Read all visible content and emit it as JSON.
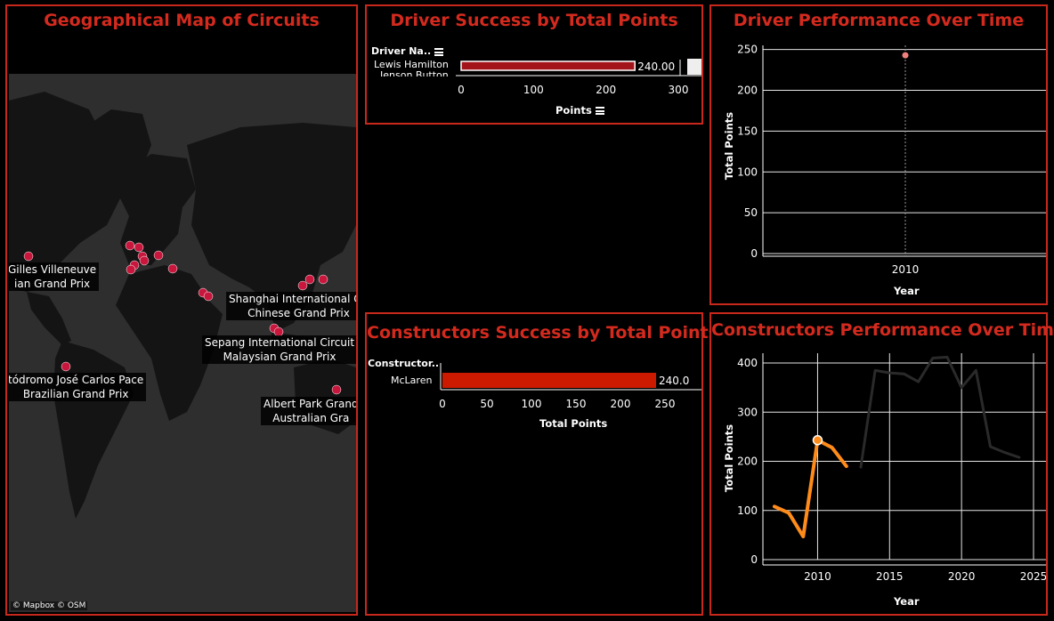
{
  "map": {
    "title": "Geographical Map of Circuits",
    "attribution": "© Mapbox © OSM",
    "labels": [
      {
        "circuit": "Gilles Villeneuve",
        "race": "ian Grand Prix"
      },
      {
        "circuit": "Shanghai International Cir",
        "race": "Chinese Grand Prix"
      },
      {
        "circuit": "Sepang International Circuit",
        "race": "Malaysian Grand Prix"
      },
      {
        "circuit": "tódromo José Carlos Pace",
        "race": "Brazilian Grand Prix"
      },
      {
        "circuit": "Albert Park Grand",
        "race": "Australian Gra"
      }
    ],
    "marker_color": "#c8163c"
  },
  "driver_bar": {
    "title": "Driver Success by Total Points",
    "row_header": "Driver Na..",
    "rows": [
      "Lewis Hamilton",
      "Jenson Button"
    ],
    "value_label": "240.00",
    "x_title": "Points",
    "bar_color": "#a3141a",
    "chart_data": {
      "type": "bar",
      "categories": [
        "Lewis Hamilton"
      ],
      "values": [
        240
      ],
      "xlabel": "Points",
      "xlim": [
        0,
        300
      ],
      "ticks": [
        "0",
        "100",
        "200",
        "300"
      ]
    }
  },
  "driver_time": {
    "title": "Driver Performance Over Time",
    "y_title": "Total Points",
    "x_title": "Year",
    "y_ticks": [
      "250",
      "200",
      "150",
      "100",
      "50",
      "0"
    ],
    "x_ticks": [
      "2010"
    ],
    "chart_data": {
      "type": "scatter",
      "x": [
        2010
      ],
      "y": [
        243
      ],
      "xlabel": "Year",
      "ylabel": "Total Points",
      "ylim": [
        0,
        250
      ],
      "point_color": "#f08080"
    }
  },
  "constructor_bar": {
    "title": "Constructors Success by Total Points",
    "row_header": "Constructor..",
    "rows": [
      "McLaren"
    ],
    "value_label": "240.0",
    "x_title": "Total Points",
    "bar_color": "#cc1a00",
    "chart_data": {
      "type": "bar",
      "categories": [
        "McLaren"
      ],
      "values": [
        240
      ],
      "xlabel": "Total Points",
      "xlim": [
        0,
        290
      ],
      "ticks": [
        "0",
        "50",
        "100",
        "150",
        "200",
        "250"
      ]
    }
  },
  "constructor_time": {
    "title": "Constructors Performance Over Time",
    "y_title": "Total Points",
    "x_title": "Year",
    "y_ticks": [
      "400",
      "300",
      "200",
      "100",
      "0"
    ],
    "x_ticks": [
      "2010",
      "2015",
      "2020",
      "2025"
    ],
    "chart_data": {
      "type": "line",
      "xlabel": "Year",
      "ylabel": "Total Points",
      "xlim": [
        2006,
        2025
      ],
      "ylim": [
        0,
        420
      ],
      "series": [
        {
          "color": "#ff8c1a",
          "x": [
            2007,
            2008,
            2009,
            2010,
            2011,
            2012
          ],
          "y": [
            108,
            95,
            47,
            243,
            228,
            190
          ]
        },
        {
          "color": "#2a2a2a",
          "x": [
            2013,
            2014,
            2015,
            2016,
            2017,
            2018,
            2019,
            2020,
            2021,
            2022,
            2023,
            2024
          ],
          "y": [
            188,
            385,
            380,
            378,
            362,
            410,
            412,
            350,
            385,
            230,
            218,
            208
          ]
        }
      ]
    }
  }
}
